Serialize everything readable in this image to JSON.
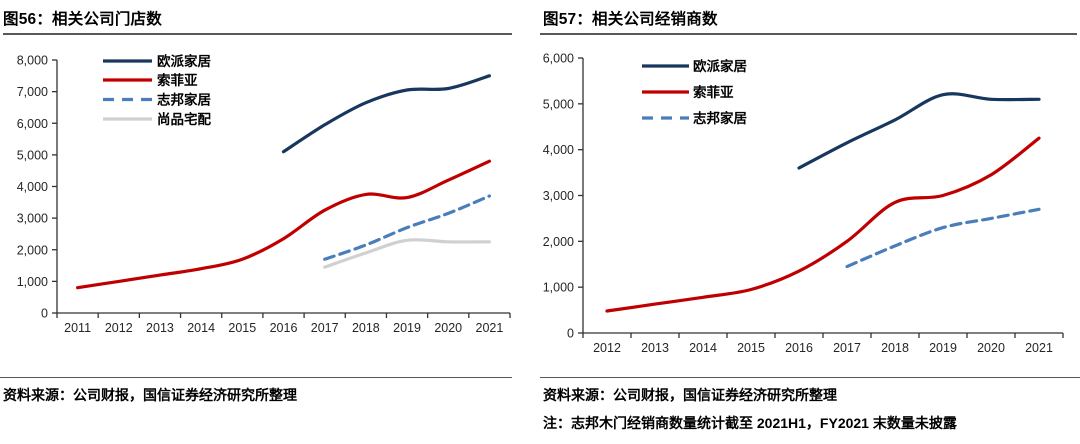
{
  "page": {
    "background": "#ffffff"
  },
  "panels": [
    {
      "title": "图56：相关公司门店数",
      "source": "资料来源：公司财报，国信证券经济研究所整理"
    },
    {
      "title": "图57：相关公司经销商数",
      "source": "资料来源：公司财报，国信证券经济研究所整理",
      "note": "注：志邦木门经销商数量统计截至 2021H1，FY2021 末数量未披露"
    }
  ],
  "chart_data": [
    {
      "type": "line",
      "title": "图56：相关公司门店数",
      "x": [
        2011,
        2012,
        2013,
        2014,
        2015,
        2016,
        2017,
        2018,
        2019,
        2020,
        2021
      ],
      "ylim": [
        0,
        8000
      ],
      "ytick_step": 1000,
      "grid": false,
      "legend_position": "inside-top-left",
      "axis_color": "#333333",
      "tick_label_color": "#262626",
      "series": [
        {
          "name": "欧派家居",
          "color": "#17375E",
          "style": "solid",
          "x": [
            2016,
            2017,
            2018,
            2019,
            2020,
            2021
          ],
          "values": [
            5100,
            5950,
            6650,
            7050,
            7100,
            7500
          ]
        },
        {
          "name": "索菲亚",
          "color": "#C00000",
          "style": "solid",
          "x": [
            2011,
            2012,
            2013,
            2014,
            2015,
            2016,
            2017,
            2018,
            2019,
            2020,
            2021
          ],
          "values": [
            800,
            1000,
            1200,
            1400,
            1700,
            2350,
            3250,
            3750,
            3650,
            4200,
            4800
          ]
        },
        {
          "name": "志邦家居",
          "color": "#4A7EBB",
          "style": "dashed",
          "x": [
            2017,
            2018,
            2019,
            2020,
            2021
          ],
          "values": [
            1700,
            2150,
            2700,
            3150,
            3700
          ]
        },
        {
          "name": "尚品宅配",
          "color": "#D0D0D0",
          "style": "solid",
          "x": [
            2017,
            2018,
            2019,
            2020,
            2021
          ],
          "values": [
            1450,
            1900,
            2300,
            2250,
            2250
          ]
        }
      ]
    },
    {
      "type": "line",
      "title": "图57：相关公司经销商数",
      "x": [
        2012,
        2013,
        2014,
        2015,
        2016,
        2017,
        2018,
        2019,
        2020,
        2021
      ],
      "ylim": [
        0,
        6000
      ],
      "ytick_step": 1000,
      "grid": false,
      "legend_position": "inside-top-left",
      "axis_color": "#333333",
      "tick_label_color": "#262626",
      "series": [
        {
          "name": "欧派家居",
          "color": "#17375E",
          "style": "solid",
          "x": [
            2016,
            2017,
            2018,
            2019,
            2020,
            2021
          ],
          "values": [
            3600,
            4150,
            4650,
            5200,
            5100,
            5100
          ]
        },
        {
          "name": "索菲亚",
          "color": "#C00000",
          "style": "solid",
          "x": [
            2012,
            2013,
            2014,
            2015,
            2016,
            2017,
            2018,
            2019,
            2020,
            2021
          ],
          "values": [
            480,
            630,
            780,
            950,
            1350,
            2000,
            2850,
            3000,
            3450,
            4250
          ]
        },
        {
          "name": "志邦家居",
          "color": "#4A7EBB",
          "style": "dashed",
          "x": [
            2017,
            2018,
            2019,
            2020,
            2021
          ],
          "values": [
            1450,
            1900,
            2300,
            2500,
            2700
          ]
        }
      ]
    }
  ]
}
